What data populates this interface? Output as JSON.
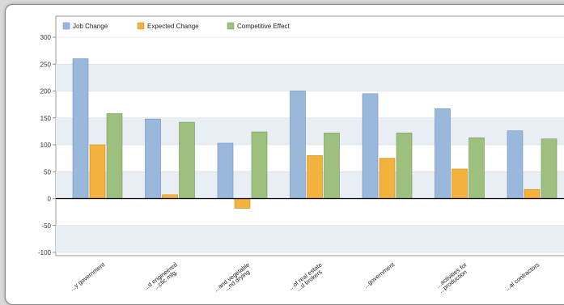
{
  "chart_data": {
    "type": "bar",
    "categories": [
      "Local government",
      "Architectural and engineered structural metal product mfg.",
      "Frozen fruit, juice, and vegetable canning and drying",
      "Offices of real estate agents and brokers",
      "State government",
      "Support activities for crop production",
      "Electrical contractors"
    ],
    "category_labels_visible": [
      "...y government",
      "...d engineered ...ctic mfg.",
      "...and vegetable ...nd drying",
      "...of real estate ...d brokers",
      "...government",
      "...activities for ...production",
      "...al contractors"
    ],
    "series": [
      {
        "name": "Job Change",
        "values": [
          260,
          148,
          103,
          200,
          195,
          167,
          126
        ]
      },
      {
        "name": "Expected Change",
        "values": [
          100,
          7,
          -18,
          80,
          75,
          55,
          17
        ]
      },
      {
        "name": "Competitive Effect",
        "values": [
          158,
          142,
          124,
          122,
          122,
          113,
          111
        ]
      }
    ],
    "ylim": [
      -100,
      300
    ],
    "yticks": [
      300,
      250,
      200,
      150,
      100,
      50,
      0,
      -50,
      -100
    ],
    "grid": true,
    "legend_position": "top-left",
    "colors": {
      "Job Change": "#9ab8dc",
      "Expected Change": "#f3b13e",
      "Competitive Effect": "#9dc07e",
      "band": "#e9eef5"
    }
  }
}
